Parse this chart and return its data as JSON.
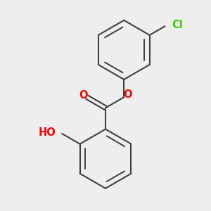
{
  "bg_color": "#eeeeee",
  "bond_color": "#404040",
  "bond_width": 1.5,
  "atom_colors": {
    "O": "#ff0000",
    "Cl": "#33cc00",
    "H": "#404040",
    "C": "#404040"
  },
  "font_size_atom": 10.5,
  "font_size_ho": 10.5
}
